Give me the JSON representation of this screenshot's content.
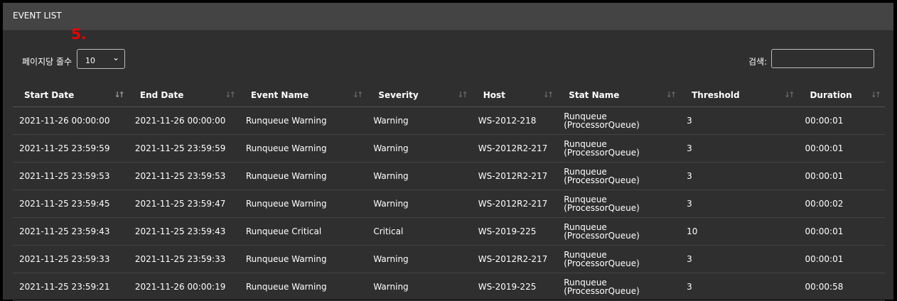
{
  "panel": {
    "title": "EVENT LIST",
    "annotation": "5."
  },
  "controls": {
    "page_length_label": "페이지당 줄수",
    "page_length_value": "10",
    "search_label": "검색:",
    "search_value": ""
  },
  "table": {
    "columns": [
      "Start Date",
      "End Date",
      "Event Name",
      "Severity",
      "Host",
      "Stat Name",
      "Threshold",
      "Duration"
    ],
    "sorted_column": 0,
    "rows": [
      [
        "2021-11-26 00:00:00",
        "2021-11-26 00:00:00",
        "Runqueue Warning",
        "Warning",
        "WS-2012-218",
        "Runqueue\n(ProcessorQueue)",
        "3",
        "00:00:01"
      ],
      [
        "2021-11-25 23:59:59",
        "2021-11-25 23:59:59",
        "Runqueue Warning",
        "Warning",
        "WS-2012R2-217",
        "Runqueue\n(ProcessorQueue)",
        "3",
        "00:00:01"
      ],
      [
        "2021-11-25 23:59:53",
        "2021-11-25 23:59:53",
        "Runqueue Warning",
        "Warning",
        "WS-2012R2-217",
        "Runqueue\n(ProcessorQueue)",
        "3",
        "00:00:01"
      ],
      [
        "2021-11-25 23:59:45",
        "2021-11-25 23:59:47",
        "Runqueue Warning",
        "Warning",
        "WS-2012R2-217",
        "Runqueue\n(ProcessorQueue)",
        "3",
        "00:00:02"
      ],
      [
        "2021-11-25 23:59:43",
        "2021-11-25 23:59:43",
        "Runqueue Critical",
        "Critical",
        "WS-2019-225",
        "Runqueue\n(ProcessorQueue)",
        "10",
        "00:00:01"
      ],
      [
        "2021-11-25 23:59:33",
        "2021-11-25 23:59:33",
        "Runqueue Warning",
        "Warning",
        "WS-2012R2-217",
        "Runqueue\n(ProcessorQueue)",
        "3",
        "00:00:01"
      ],
      [
        "2021-11-25 23:59:21",
        "2021-11-26 00:00:19",
        "Runqueue Warning",
        "Warning",
        "WS-2019-225",
        "Runqueue\n(ProcessorQueue)",
        "3",
        "00:00:58"
      ]
    ]
  },
  "colors": {
    "background": "#2f2f2f",
    "header": "#444444",
    "annotation": "#e00000"
  },
  "icons": {
    "sort": "sort-arrows-icon",
    "dropdown": "chevron-down-icon"
  }
}
